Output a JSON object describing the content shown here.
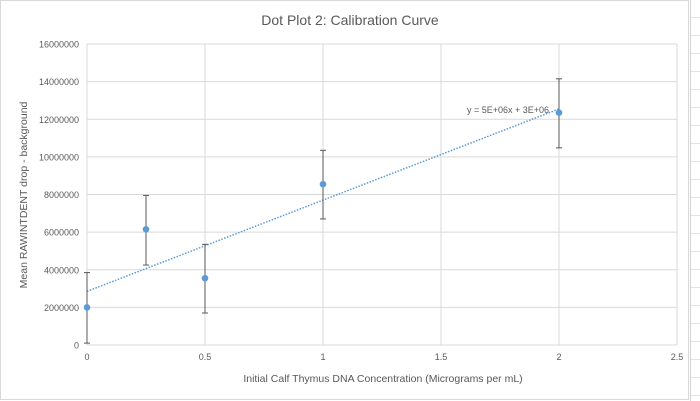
{
  "chart_data": {
    "type": "scatter",
    "title": "Dot Plot 2: Calibration Curve",
    "xlabel": "Initial Calf Thymus DNA Concentration (Micrograms per mL)",
    "ylabel": "Mean RAWINTDENT drop - background",
    "xlim": [
      0,
      2.5
    ],
    "ylim": [
      0,
      16000000
    ],
    "xticks": [
      "0",
      "0.5",
      "1",
      "1.5",
      "2",
      "2.5"
    ],
    "yticks": [
      "0",
      "2000000",
      "4000000",
      "6000000",
      "8000000",
      "10000000",
      "12000000",
      "14000000",
      "16000000"
    ],
    "grid": true,
    "points": [
      {
        "x": 0,
        "y": 2000000,
        "err_low": 100000,
        "err_high": 3850000
      },
      {
        "x": 0.25,
        "y": 6150000,
        "err_low": 4250000,
        "err_high": 7950000
      },
      {
        "x": 0.5,
        "y": 3550000,
        "err_low": 1700000,
        "err_high": 5350000
      },
      {
        "x": 1,
        "y": 8550000,
        "err_low": 6700000,
        "err_high": 10350000
      },
      {
        "x": 2,
        "y": 12350000,
        "err_low": 10480000,
        "err_high": 14150000
      }
    ],
    "trendline": {
      "type": "linear",
      "x_range": [
        0,
        2
      ],
      "y_at_start": 2850000,
      "y_at_end": 12550000,
      "style": "dotted"
    },
    "trendline_equation": "y = 5E+06x + 3E+06",
    "colors": {
      "marker": "#5b9bd5",
      "trendline": "#5b9bd5",
      "error_bar": "#595959",
      "grid": "#d9d9d9"
    }
  }
}
